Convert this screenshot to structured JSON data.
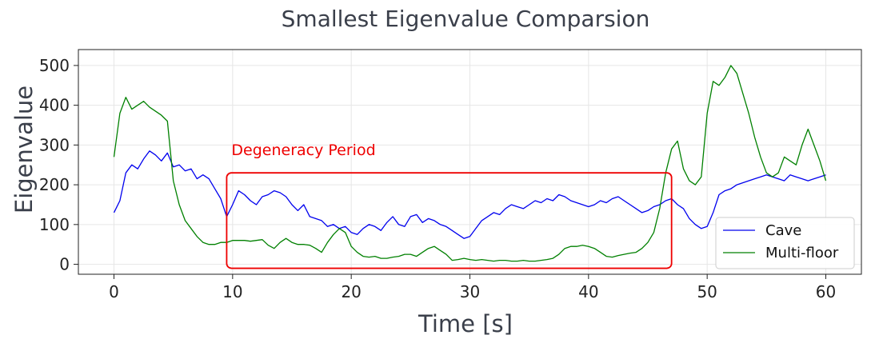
{
  "chart_data": {
    "type": "line",
    "title": "Smallest Eigenvalue Comparsion",
    "xlabel": "Time [s]",
    "ylabel": "Eigenvalue",
    "xlim": [
      -3,
      63
    ],
    "ylim": [
      -25,
      540
    ],
    "xticks": [
      0,
      10,
      20,
      30,
      40,
      50,
      60
    ],
    "yticks": [
      0,
      100,
      200,
      300,
      400,
      500
    ],
    "grid": true,
    "legend_position": "lower-right",
    "series": [
      {
        "name": "Cave",
        "color": "#0000ee",
        "x": [
          0,
          0.5,
          1,
          1.5,
          2,
          2.5,
          3,
          3.5,
          4,
          4.5,
          5,
          5.5,
          6,
          6.5,
          7,
          7.5,
          8,
          8.5,
          9,
          9.5,
          10,
          10.5,
          11,
          11.5,
          12,
          12.5,
          13,
          13.5,
          14,
          14.5,
          15,
          15.5,
          16,
          16.5,
          17,
          17.5,
          18,
          18.5,
          19,
          19.5,
          20,
          20.5,
          21,
          21.5,
          22,
          22.5,
          23,
          23.5,
          24,
          24.5,
          25,
          25.5,
          26,
          26.5,
          27,
          27.5,
          28,
          28.5,
          29,
          29.5,
          30,
          30.5,
          31,
          31.5,
          32,
          32.5,
          33,
          33.5,
          34,
          34.5,
          35,
          35.5,
          36,
          36.5,
          37,
          37.5,
          38,
          38.5,
          39,
          39.5,
          40,
          40.5,
          41,
          41.5,
          42,
          42.5,
          43,
          43.5,
          44,
          44.5,
          45,
          45.5,
          46,
          46.5,
          47,
          47.5,
          48,
          48.5,
          49,
          49.5,
          50,
          50.5,
          51,
          51.5,
          52,
          52.5,
          53,
          53.5,
          54,
          54.5,
          55,
          55.5,
          56,
          56.5,
          57,
          57.5,
          58,
          58.5,
          59,
          59.5,
          60
        ],
        "values": [
          130,
          160,
          230,
          250,
          240,
          265,
          285,
          275,
          260,
          280,
          245,
          250,
          235,
          240,
          215,
          225,
          215,
          190,
          165,
          120,
          150,
          185,
          175,
          160,
          150,
          170,
          175,
          185,
          180,
          170,
          150,
          135,
          150,
          120,
          115,
          110,
          95,
          100,
          90,
          95,
          80,
          75,
          90,
          100,
          95,
          85,
          105,
          120,
          100,
          95,
          120,
          125,
          105,
          115,
          110,
          100,
          95,
          85,
          75,
          65,
          70,
          90,
          110,
          120,
          130,
          125,
          140,
          150,
          145,
          140,
          150,
          160,
          155,
          165,
          160,
          175,
          170,
          160,
          155,
          150,
          145,
          150,
          160,
          155,
          165,
          170,
          160,
          150,
          140,
          130,
          135,
          145,
          150,
          160,
          165,
          150,
          140,
          115,
          100,
          90,
          95,
          130,
          175,
          185,
          190,
          200,
          205,
          210,
          215,
          220,
          225,
          220,
          215,
          210,
          225,
          220,
          215,
          210,
          215,
          220,
          225
        ]
      },
      {
        "name": "Multi-floor",
        "color": "#008000",
        "x": [
          0,
          0.5,
          1,
          1.5,
          2,
          2.5,
          3,
          3.5,
          4,
          4.5,
          5,
          5.5,
          6,
          6.5,
          7,
          7.5,
          8,
          8.5,
          9,
          9.5,
          10,
          10.5,
          11,
          11.5,
          12,
          12.5,
          13,
          13.5,
          14,
          14.5,
          15,
          15.5,
          16,
          16.5,
          17,
          17.5,
          18,
          18.5,
          19,
          19.5,
          20,
          20.5,
          21,
          21.5,
          22,
          22.5,
          23,
          23.5,
          24,
          24.5,
          25,
          25.5,
          26,
          26.5,
          27,
          27.5,
          28,
          28.5,
          29,
          29.5,
          30,
          30.5,
          31,
          31.5,
          32,
          32.5,
          33,
          33.5,
          34,
          34.5,
          35,
          35.5,
          36,
          36.5,
          37,
          37.5,
          38,
          38.5,
          39,
          39.5,
          40,
          40.5,
          41,
          41.5,
          42,
          42.5,
          43,
          43.5,
          44,
          44.5,
          45,
          45.5,
          46,
          46.5,
          47,
          47.5,
          48,
          48.5,
          49,
          49.5,
          50,
          50.5,
          51,
          51.5,
          52,
          52.5,
          53,
          53.5,
          54,
          54.5,
          55,
          55.5,
          56,
          56.5,
          57,
          57.5,
          58,
          58.5,
          59,
          59.5,
          60
        ],
        "values": [
          270,
          380,
          420,
          390,
          400,
          410,
          395,
          385,
          375,
          360,
          210,
          150,
          110,
          90,
          70,
          55,
          50,
          50,
          55,
          55,
          60,
          60,
          60,
          58,
          60,
          62,
          48,
          40,
          55,
          65,
          55,
          50,
          50,
          48,
          40,
          30,
          55,
          75,
          90,
          80,
          45,
          30,
          20,
          18,
          20,
          15,
          15,
          18,
          20,
          25,
          25,
          20,
          30,
          40,
          45,
          35,
          25,
          10,
          12,
          15,
          12,
          10,
          12,
          10,
          8,
          10,
          10,
          8,
          8,
          10,
          8,
          8,
          10,
          12,
          15,
          25,
          40,
          45,
          45,
          48,
          45,
          40,
          30,
          20,
          18,
          22,
          25,
          28,
          30,
          40,
          55,
          80,
          140,
          230,
          290,
          310,
          240,
          210,
          200,
          220,
          380,
          460,
          450,
          470,
          500,
          480,
          430,
          380,
          320,
          270,
          230,
          220,
          230,
          270,
          260,
          250,
          300,
          340,
          300,
          260,
          210
        ]
      }
    ],
    "annotations": [
      {
        "text": "Degeneracy Period",
        "color": "#ee0000",
        "box_x": [
          9.5,
          47
        ],
        "box_y": [
          -10,
          230
        ]
      }
    ]
  }
}
